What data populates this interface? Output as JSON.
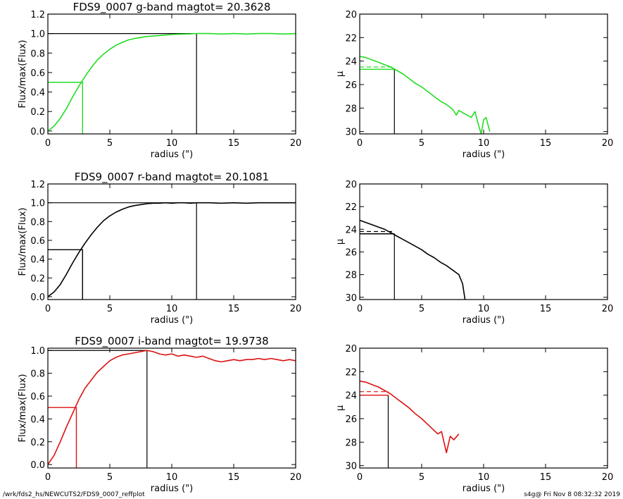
{
  "footer": {
    "path": "/wrk/fds2_hs/NEWCUTS2/FDS9_0007_reffplot",
    "stamp": "s4g@  Fri Nov  8 08:32:32 2019"
  },
  "colors": {
    "g": "#22dd22",
    "r": "#000000",
    "i": "#dd1111",
    "ref": "#000000"
  },
  "chart_data": [
    {
      "id": "g-growth",
      "type": "line",
      "band": "g",
      "title": "FDS9_0007 g-band  magtot=      20.3628",
      "xlabel": "radius (\")",
      "ylabel": "Flux/max(Flux)",
      "xlim": [
        0,
        20
      ],
      "ylim": [
        -0.03,
        1.2
      ],
      "xticks": [
        "0",
        "5",
        "10",
        "15",
        "20"
      ],
      "yticks": [
        "0.0",
        "0.2",
        "0.4",
        "0.6",
        "0.8",
        "1.0",
        "1.2"
      ],
      "r_half": 2.8,
      "r_total": 12.0,
      "series": [
        {
          "x": [
            0,
            0.5,
            1,
            1.5,
            2,
            2.5,
            3,
            3.5,
            4,
            4.5,
            5,
            5.5,
            6,
            6.5,
            7,
            7.5,
            8,
            8.5,
            9,
            9.5,
            10,
            10.5,
            11,
            11.5,
            12,
            13,
            14,
            15,
            16,
            17,
            18,
            19,
            20
          ],
          "y": [
            0,
            0.05,
            0.13,
            0.23,
            0.35,
            0.46,
            0.56,
            0.65,
            0.73,
            0.79,
            0.84,
            0.88,
            0.91,
            0.935,
            0.95,
            0.96,
            0.97,
            0.975,
            0.98,
            0.985,
            0.99,
            0.993,
            0.995,
            0.997,
            1.0,
            1.0,
            0.995,
            1.0,
            0.995,
            1.0,
            1.0,
            0.995,
            1.0
          ]
        }
      ]
    },
    {
      "id": "g-mu",
      "type": "line",
      "band": "g",
      "title": "",
      "xlabel": "radius (\")",
      "ylabel": "μ",
      "xlim": [
        0,
        20
      ],
      "ylim": [
        20,
        30.2
      ],
      "y_inverted": true,
      "xticks": [
        "0",
        "5",
        "10",
        "15",
        "20"
      ],
      "yticks": [
        "20",
        "22",
        "24",
        "26",
        "28",
        "30"
      ],
      "r_half": 2.8,
      "mu_half": 24.7,
      "mu_mean": 24.5,
      "series": [
        {
          "x": [
            0,
            0.5,
            1,
            1.5,
            2,
            2.5,
            3,
            3.5,
            4,
            4.5,
            5,
            5.5,
            6,
            6.5,
            7,
            7.5,
            7.8,
            8,
            8.5,
            9,
            9.3,
            9.6,
            9.8,
            10,
            10.2,
            10.5
          ],
          "y": [
            23.6,
            23.7,
            23.9,
            24.1,
            24.3,
            24.5,
            24.8,
            25.1,
            25.5,
            25.9,
            26.2,
            26.6,
            27.0,
            27.4,
            27.7,
            28.1,
            28.6,
            28.2,
            28.5,
            28.8,
            28.3,
            29.5,
            30.2,
            29.0,
            28.8,
            30.0
          ]
        }
      ]
    },
    {
      "id": "r-growth",
      "type": "line",
      "band": "r",
      "title": "FDS9_0007 r-band  magtot=      20.1081",
      "xlabel": "radius (\")",
      "ylabel": "Flux/max(Flux)",
      "xlim": [
        0,
        20
      ],
      "ylim": [
        -0.03,
        1.2
      ],
      "xticks": [
        "0",
        "5",
        "10",
        "15",
        "20"
      ],
      "yticks": [
        "0.0",
        "0.2",
        "0.4",
        "0.6",
        "0.8",
        "1.0",
        "1.2"
      ],
      "r_half": 2.8,
      "r_total": 12.0,
      "series": [
        {
          "x": [
            0,
            0.5,
            1,
            1.5,
            2,
            2.5,
            3,
            3.5,
            4,
            4.5,
            5,
            5.5,
            6,
            6.5,
            7,
            7.5,
            8,
            8.5,
            9,
            9.5,
            10,
            10.5,
            11,
            11.5,
            12,
            13,
            14,
            15,
            16,
            17,
            18,
            19,
            20
          ],
          "y": [
            0,
            0.05,
            0.13,
            0.24,
            0.36,
            0.47,
            0.57,
            0.66,
            0.74,
            0.81,
            0.86,
            0.9,
            0.93,
            0.955,
            0.97,
            0.98,
            0.99,
            0.995,
            0.995,
            1.0,
            0.995,
            1.0,
            1.0,
            0.995,
            1.0,
            1.0,
            0.995,
            1.0,
            0.995,
            1.0,
            1.0,
            1.0,
            1.0
          ]
        }
      ]
    },
    {
      "id": "r-mu",
      "type": "line",
      "band": "r",
      "title": "",
      "xlabel": "radius (\")",
      "ylabel": "μ",
      "xlim": [
        0,
        20
      ],
      "ylim": [
        20,
        30.2
      ],
      "y_inverted": true,
      "xticks": [
        "0",
        "5",
        "10",
        "15",
        "20"
      ],
      "yticks": [
        "20",
        "22",
        "24",
        "26",
        "28",
        "30"
      ],
      "r_half": 2.8,
      "mu_half": 24.4,
      "mu_mean": 24.2,
      "series": [
        {
          "x": [
            0,
            0.5,
            1,
            1.5,
            2,
            2.5,
            3,
            3.5,
            4,
            4.5,
            5,
            5.5,
            6,
            6.5,
            7,
            7.5,
            8,
            8.3,
            8.5
          ],
          "y": [
            23.2,
            23.4,
            23.6,
            23.8,
            24.0,
            24.3,
            24.6,
            24.9,
            25.2,
            25.5,
            25.8,
            26.2,
            26.5,
            26.9,
            27.2,
            27.6,
            28.0,
            28.8,
            30.2
          ]
        }
      ]
    },
    {
      "id": "i-growth",
      "type": "line",
      "band": "i",
      "title": "FDS9_0007 i-band  magtot=      19.9738",
      "xlabel": "radius (\")",
      "ylabel": "Flux/max(Flux)",
      "xlim": [
        0,
        20
      ],
      "ylim": [
        -0.03,
        1.02
      ],
      "xticks": [
        "0",
        "5",
        "10",
        "15",
        "20"
      ],
      "yticks": [
        "0.0",
        "0.2",
        "0.4",
        "0.6",
        "0.8",
        "1.0"
      ],
      "r_half": 2.3,
      "r_total": 8.0,
      "series": [
        {
          "x": [
            0,
            0.5,
            1,
            1.5,
            2,
            2.5,
            3,
            3.5,
            4,
            4.5,
            5,
            5.5,
            6,
            6.5,
            7,
            7.5,
            8,
            8.5,
            9,
            9.5,
            10,
            10.5,
            11,
            11.5,
            12,
            12.5,
            13,
            13.5,
            14,
            14.5,
            15,
            15.5,
            16,
            16.5,
            17,
            17.5,
            18,
            18.5,
            19,
            19.5,
            20
          ],
          "y": [
            0,
            0.08,
            0.2,
            0.33,
            0.45,
            0.57,
            0.67,
            0.74,
            0.81,
            0.86,
            0.91,
            0.94,
            0.96,
            0.97,
            0.98,
            0.99,
            1.0,
            0.99,
            0.97,
            0.96,
            0.97,
            0.95,
            0.96,
            0.95,
            0.94,
            0.95,
            0.93,
            0.91,
            0.9,
            0.91,
            0.92,
            0.91,
            0.92,
            0.92,
            0.93,
            0.92,
            0.93,
            0.92,
            0.91,
            0.92,
            0.91
          ]
        }
      ]
    },
    {
      "id": "i-mu",
      "type": "line",
      "band": "i",
      "title": "",
      "xlabel": "radius (\")",
      "ylabel": "μ",
      "xlim": [
        0,
        20
      ],
      "ylim": [
        20,
        30.2
      ],
      "y_inverted": true,
      "xticks": [
        "0",
        "5",
        "10",
        "15",
        "20"
      ],
      "yticks": [
        "20",
        "22",
        "24",
        "26",
        "28",
        "30"
      ],
      "r_half": 2.3,
      "mu_half": 24.0,
      "mu_mean": 23.7,
      "series": [
        {
          "x": [
            0,
            0.5,
            1,
            1.5,
            2,
            2.5,
            3,
            3.5,
            4,
            4.5,
            5,
            5.5,
            6,
            6.3,
            6.6,
            7,
            7.3,
            7.6,
            8
          ],
          "y": [
            22.8,
            22.9,
            23.1,
            23.3,
            23.6,
            23.9,
            24.3,
            24.7,
            25.1,
            25.6,
            26.0,
            26.5,
            27.0,
            27.3,
            27.1,
            28.9,
            27.5,
            27.8,
            27.3
          ]
        }
      ]
    }
  ]
}
